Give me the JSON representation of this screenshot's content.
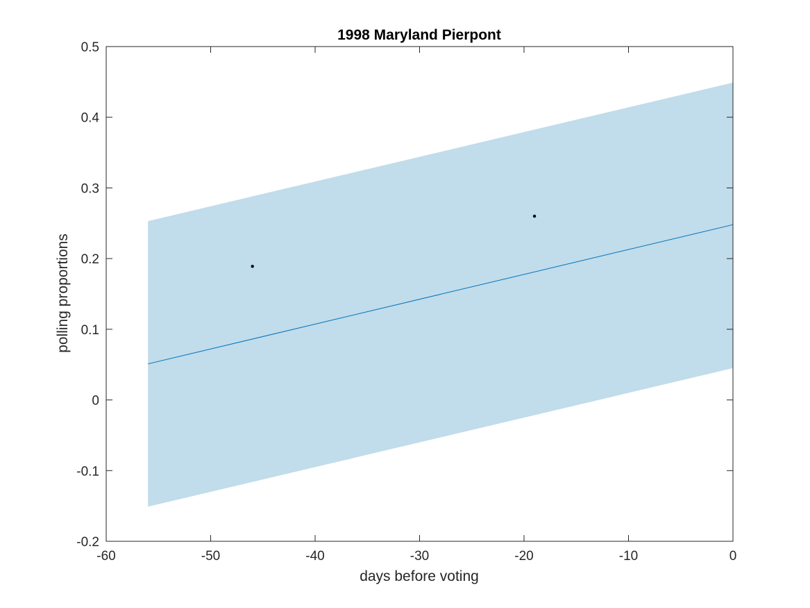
{
  "chart_data": {
    "type": "line",
    "title": "1998 Maryland Pierpont",
    "xlabel": "days before voting",
    "ylabel": "polling proportions",
    "xlim": [
      -60,
      0
    ],
    "ylim": [
      -0.2,
      0.5
    ],
    "x_ticks": [
      -60,
      -50,
      -40,
      -30,
      -20,
      -10,
      0
    ],
    "x_tick_labels": [
      "-60",
      "-50",
      "-40",
      "-30",
      "-20",
      "-10",
      "0"
    ],
    "y_ticks": [
      -0.2,
      -0.1,
      0,
      0.1,
      0.2,
      0.3,
      0.4,
      0.5
    ],
    "y_tick_labels": [
      "-0.2",
      "-0.1",
      "0",
      "0.1",
      "0.2",
      "0.3",
      "0.4",
      "0.5"
    ],
    "grid": false,
    "band": {
      "x": [
        -56,
        0
      ],
      "lower": [
        -0.151,
        0.045
      ],
      "upper": [
        0.253,
        0.449
      ],
      "color": "#c1dcea"
    },
    "trend_line": {
      "x": [
        -56,
        0
      ],
      "y": [
        0.051,
        0.248
      ],
      "color": "#0072bd"
    },
    "points": [
      {
        "x": -46,
        "y": 0.189
      },
      {
        "x": -19,
        "y": 0.26
      }
    ],
    "point_color": "#000000"
  }
}
